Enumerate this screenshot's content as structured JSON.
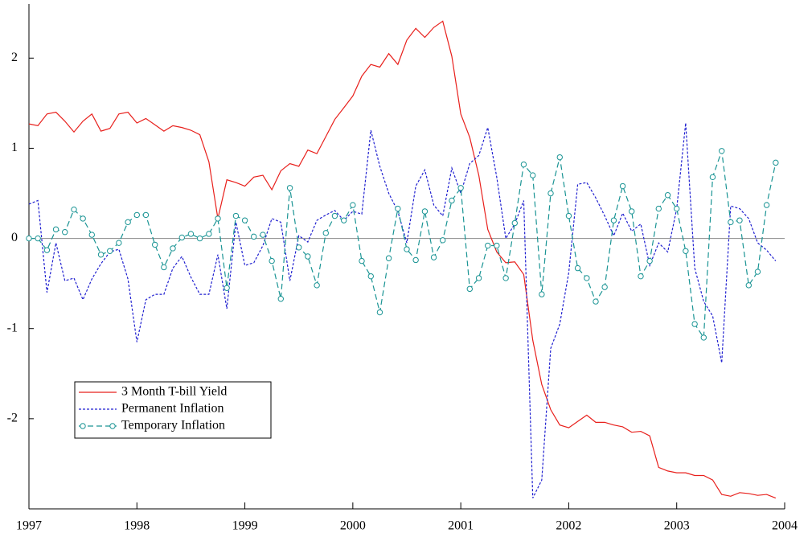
{
  "chart_data": {
    "type": "line",
    "x": [
      1997,
      1997.083,
      1997.167,
      1997.25,
      1997.333,
      1997.417,
      1997.5,
      1997.583,
      1997.667,
      1997.75,
      1997.833,
      1997.917,
      1998,
      1998.083,
      1998.167,
      1998.25,
      1998.333,
      1998.417,
      1998.5,
      1998.583,
      1998.667,
      1998.75,
      1998.833,
      1998.917,
      1999,
      1999.083,
      1999.167,
      1999.25,
      1999.333,
      1999.417,
      1999.5,
      1999.583,
      1999.667,
      1999.75,
      1999.833,
      1999.917,
      2000,
      2000.083,
      2000.167,
      2000.25,
      2000.333,
      2000.417,
      2000.5,
      2000.583,
      2000.667,
      2000.75,
      2000.833,
      2000.917,
      2001,
      2001.083,
      2001.167,
      2001.25,
      2001.333,
      2001.417,
      2001.5,
      2001.583,
      2001.667,
      2001.75,
      2001.833,
      2001.917,
      2002,
      2002.083,
      2002.167,
      2002.25,
      2002.333,
      2002.417,
      2002.5,
      2002.583,
      2002.667,
      2002.75,
      2002.833,
      2002.917,
      2003,
      2003.083,
      2003.167,
      2003.25,
      2003.333,
      2003.417,
      2003.5,
      2003.583,
      2003.667,
      2003.75,
      2003.833,
      2003.917
    ],
    "series": [
      {
        "name": "3 Month T-bill Yield",
        "color": "#e8201c",
        "dash": false,
        "marker": null,
        "values": [
          1.27,
          1.25,
          1.38,
          1.4,
          1.3,
          1.18,
          1.3,
          1.38,
          1.19,
          1.22,
          1.38,
          1.4,
          1.28,
          1.33,
          1.26,
          1.19,
          1.25,
          1.23,
          1.2,
          1.15,
          0.85,
          0.22,
          0.65,
          0.62,
          0.58,
          0.68,
          0.7,
          0.54,
          0.75,
          0.83,
          0.8,
          0.98,
          0.94,
          1.13,
          1.32,
          1.45,
          1.58,
          1.8,
          1.93,
          1.9,
          2.05,
          1.93,
          2.2,
          2.33,
          2.23,
          2.34,
          2.41,
          2.02,
          1.38,
          1.12,
          0.7,
          0.1,
          -0.15,
          -0.27,
          -0.26,
          -0.4,
          -1.13,
          -1.62,
          -1.9,
          -2.07,
          -2.1,
          -2.03,
          -1.96,
          -2.04,
          -2.04,
          -2.07,
          -2.09,
          -2.15,
          -2.14,
          -2.19,
          -2.54,
          -2.58,
          -2.6,
          -2.6,
          -2.63,
          -2.63,
          -2.68,
          -2.84,
          -2.86,
          -2.82,
          -2.83,
          -2.85,
          -2.84,
          -2.88
        ]
      },
      {
        "name": "Permanent Inflation",
        "color": "#2020d0",
        "dash": true,
        "marker": null,
        "values": [
          0.38,
          0.42,
          -0.6,
          -0.05,
          -0.47,
          -0.44,
          -0.68,
          -0.45,
          -0.28,
          -0.15,
          -0.12,
          -0.45,
          -1.15,
          -0.68,
          -0.62,
          -0.62,
          -0.33,
          -0.2,
          -0.43,
          -0.62,
          -0.62,
          -0.18,
          -0.78,
          0.18,
          -0.3,
          -0.27,
          -0.08,
          0.22,
          0.18,
          -0.47,
          0.03,
          -0.04,
          0.2,
          0.26,
          0.31,
          0.2,
          0.3,
          0.27,
          1.2,
          0.8,
          0.5,
          0.3,
          -0.05,
          0.58,
          0.76,
          0.37,
          0.25,
          0.78,
          0.5,
          0.83,
          0.92,
          1.23,
          0.68,
          0.0,
          0.16,
          0.42,
          -2.88,
          -2.68,
          -1.22,
          -0.95,
          -0.38,
          0.6,
          0.62,
          0.45,
          0.25,
          0.03,
          0.28,
          0.08,
          0.16,
          -0.3,
          -0.05,
          -0.15,
          0.33,
          1.28,
          -0.33,
          -0.7,
          -0.86,
          -1.38,
          0.36,
          0.33,
          0.22,
          -0.05,
          -0.13,
          -0.25
        ]
      },
      {
        "name": "Temporary Inflation",
        "color": "#1a9494",
        "dash": true,
        "marker": "circle",
        "values": [
          0.0,
          0.0,
          -0.13,
          0.1,
          0.07,
          0.32,
          0.22,
          0.04,
          -0.18,
          -0.14,
          -0.05,
          0.18,
          0.26,
          0.26,
          -0.07,
          -0.32,
          -0.11,
          0.01,
          0.05,
          0.0,
          0.05,
          0.22,
          -0.55,
          0.25,
          0.2,
          0.02,
          0.04,
          -0.25,
          -0.67,
          0.56,
          -0.1,
          -0.2,
          -0.52,
          0.06,
          0.25,
          0.2,
          0.37,
          -0.25,
          -0.42,
          -0.82,
          -0.22,
          0.33,
          -0.12,
          -0.24,
          0.3,
          -0.21,
          -0.02,
          0.42,
          0.56,
          -0.56,
          -0.44,
          -0.08,
          -0.08,
          -0.44,
          0.17,
          0.82,
          0.7,
          -0.62,
          0.5,
          0.9,
          0.25,
          -0.33,
          -0.44,
          -0.7,
          -0.54,
          0.2,
          0.58,
          0.3,
          -0.42,
          -0.25,
          0.33,
          0.48,
          0.33,
          -0.14,
          -0.95,
          -1.1,
          0.68,
          0.97,
          0.18,
          0.2,
          -0.52,
          -0.37,
          0.37,
          0.84
        ]
      }
    ],
    "xlim": [
      1997,
      2004
    ],
    "xticks": [
      1997,
      1998,
      1999,
      2000,
      2001,
      2002,
      2003,
      2004
    ],
    "ylim": [
      -3,
      2.6
    ],
    "yticks": [
      -2,
      -1,
      0,
      1,
      2
    ],
    "zero_line": true,
    "legend": "lower left"
  }
}
